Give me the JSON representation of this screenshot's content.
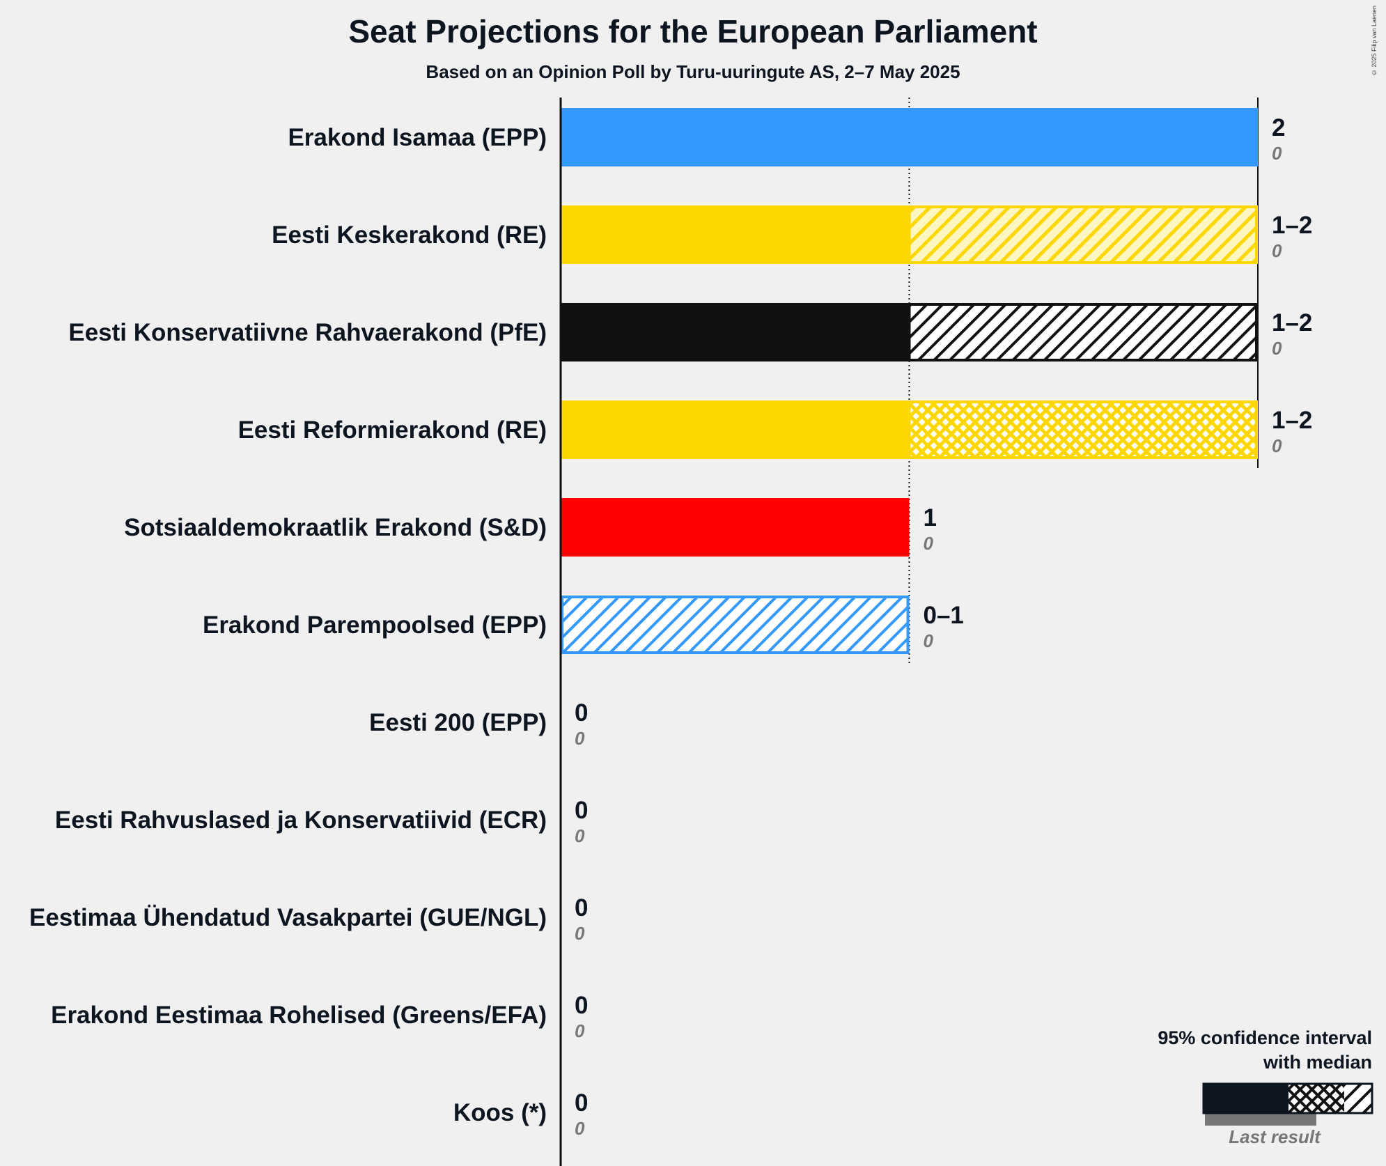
{
  "title": "Seat Projections for the European Parliament",
  "subtitle": "Based on an Opinion Poll by Turu-uuringute AS, 2–7 May 2025",
  "copyright": "© 2025 Filip van Laenen",
  "legend": {
    "title_line1": "95% confidence interval",
    "title_line2": "with median",
    "last_result": "Last result"
  },
  "chart_data": {
    "type": "bar",
    "orientation": "horizontal",
    "title": "Seat Projections for the European Parliament",
    "subtitle": "Based on an Opinion Poll by Turu-uuringute AS, 2–7 May 2025",
    "xlim": [
      0,
      2
    ],
    "gridlines": [
      1
    ],
    "parties": [
      {
        "name": "Erakond Isamaa (EPP)",
        "low": 2,
        "median": 2,
        "high": 2,
        "range_label": "2",
        "last": 0,
        "last_label": "0",
        "color": "#3399ff",
        "pattern": "none"
      },
      {
        "name": "Eesti Keskerakond (RE)",
        "low": 1,
        "median": 1,
        "high": 2,
        "range_label": "1–2",
        "last": 0,
        "last_label": "0",
        "color": "#ffd700",
        "pattern": "hatch"
      },
      {
        "name": "Eesti Konservatiivne Rahvaerakond (PfE)",
        "low": 1,
        "median": 1,
        "high": 2,
        "range_label": "1–2",
        "last": 0,
        "last_label": "0",
        "color": "#111111",
        "pattern": "hatch"
      },
      {
        "name": "Eesti Reformierakond (RE)",
        "low": 1,
        "median": 2,
        "high": 2,
        "range_label": "1–2",
        "last": 0,
        "last_label": "0",
        "color": "#ffd700",
        "pattern": "cross"
      },
      {
        "name": "Sotsiaaldemokraatlik Erakond (S&D)",
        "low": 1,
        "median": 1,
        "high": 1,
        "range_label": "1",
        "last": 0,
        "last_label": "0",
        "color": "#ff0000",
        "pattern": "none"
      },
      {
        "name": "Erakond Parempoolsed (EPP)",
        "low": 0,
        "median": 0,
        "high": 1,
        "range_label": "0–1",
        "last": 0,
        "last_label": "0",
        "color": "#3399ff",
        "pattern": "hatch"
      },
      {
        "name": "Eesti 200 (EPP)",
        "low": 0,
        "median": 0,
        "high": 0,
        "range_label": "0",
        "last": 0,
        "last_label": "0",
        "color": "#3399ff",
        "pattern": "none"
      },
      {
        "name": "Eesti Rahvuslased ja Konservatiivid (ECR)",
        "low": 0,
        "median": 0,
        "high": 0,
        "range_label": "0",
        "last": 0,
        "last_label": "0",
        "color": "#0b3d91",
        "pattern": "none"
      },
      {
        "name": "Eestimaa Ühendatud Vasakpartei (GUE/NGL)",
        "low": 0,
        "median": 0,
        "high": 0,
        "range_label": "0",
        "last": 0,
        "last_label": "0",
        "color": "#8b0000",
        "pattern": "none"
      },
      {
        "name": "Erakond Eestimaa Rohelised (Greens/EFA)",
        "low": 0,
        "median": 0,
        "high": 0,
        "range_label": "0",
        "last": 0,
        "last_label": "0",
        "color": "#4caf50",
        "pattern": "none"
      },
      {
        "name": "Koos (*)",
        "low": 0,
        "median": 0,
        "high": 0,
        "range_label": "0",
        "last": 0,
        "last_label": "0",
        "color": "#999999",
        "pattern": "none"
      }
    ]
  }
}
